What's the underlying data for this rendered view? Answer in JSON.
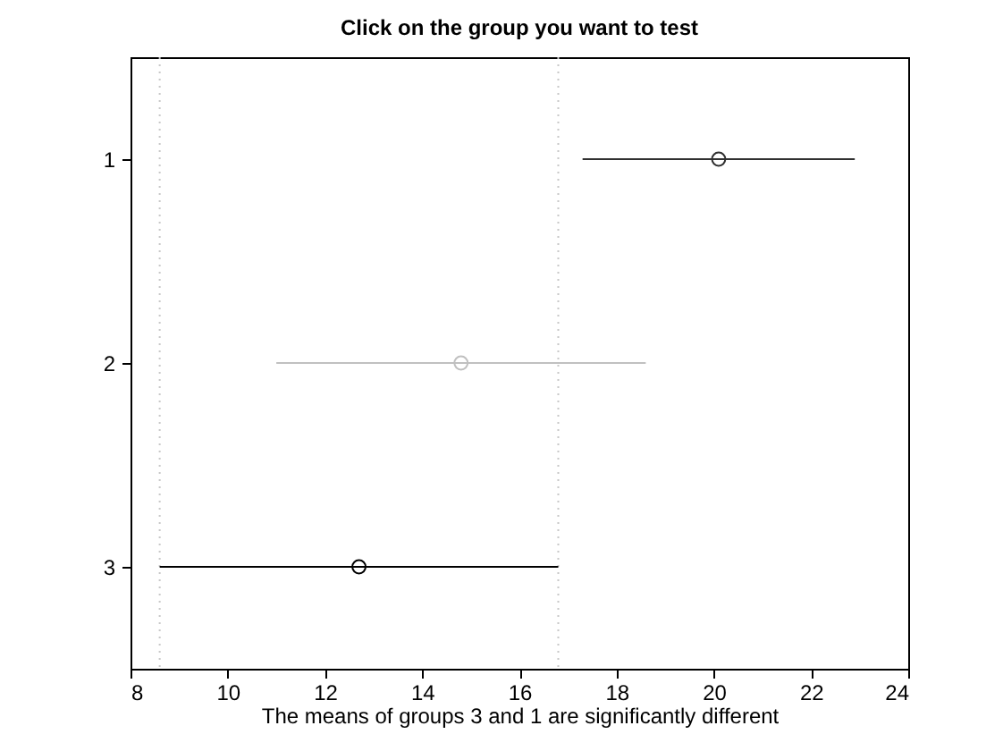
{
  "chart_data": {
    "type": "scatter",
    "title": "Click on the group you want to test",
    "xlabel": "The means of groups 3 and 1 are significantly different",
    "x": [
      20.1,
      14.8,
      12.7
    ],
    "values": [
      1,
      2,
      3
    ],
    "xerrors": [
      [
        17.3,
        22.9
      ],
      [
        11.0,
        18.6
      ],
      [
        8.6,
        16.8
      ]
    ],
    "colors": [
      "#303030",
      "#c0c0c0",
      "#000000"
    ],
    "marker": "circle",
    "xlim": [
      8,
      24
    ],
    "xticks": [
      8,
      10,
      12,
      14,
      16,
      18,
      20,
      22,
      24
    ],
    "ylim": [
      3.5,
      0.5
    ],
    "yticks": [
      1,
      2,
      3
    ],
    "ref_lines": [
      {
        "axis": "x",
        "value": 8.6,
        "color": "#c8c8c8",
        "line_style": "dotted"
      },
      {
        "axis": "x",
        "value": 16.8,
        "color": "#c8c8c8",
        "line_style": "dotted"
      }
    ],
    "grid": false
  }
}
